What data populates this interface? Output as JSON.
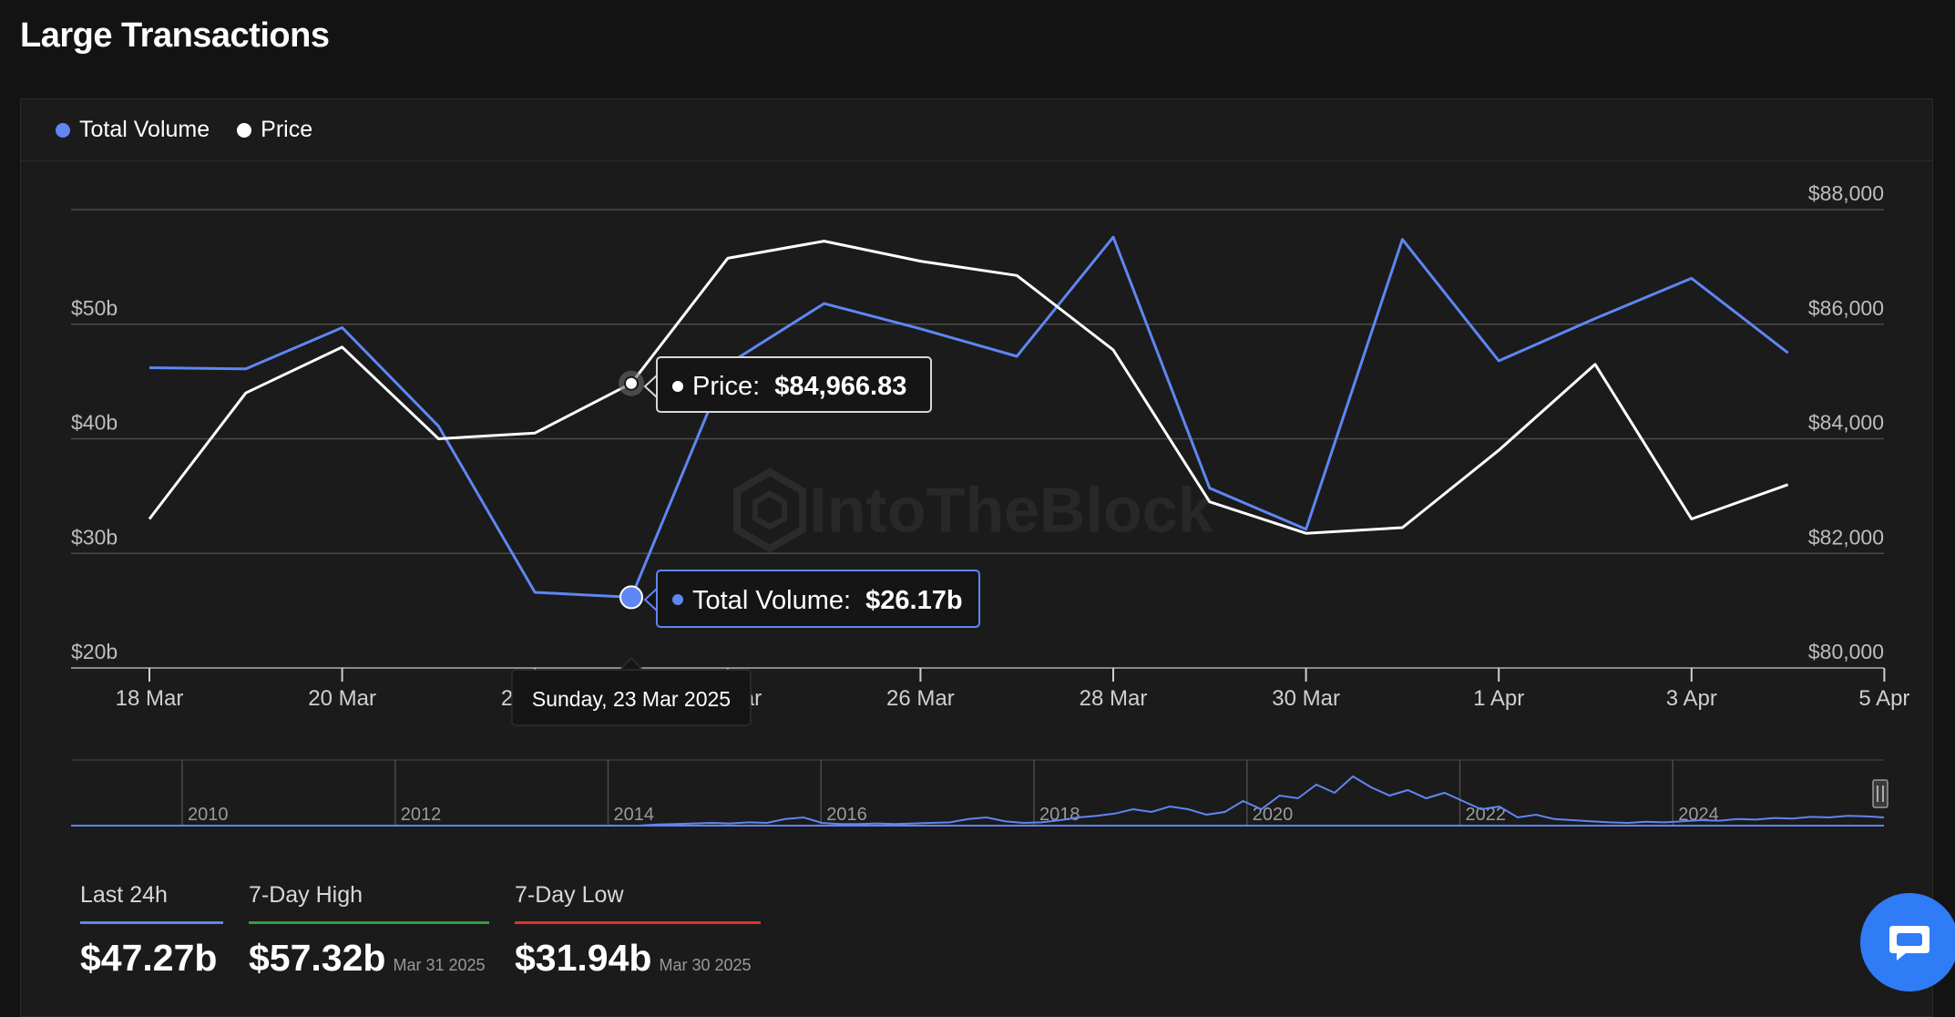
{
  "page": {
    "title": "Large Transactions"
  },
  "legend": [
    {
      "label": "Total Volume",
      "color": "#5f86f2"
    },
    {
      "label": "Price",
      "color": "#ffffff"
    }
  ],
  "watermark": "IntoTheBlock",
  "tooltip": {
    "date": "Sunday, 23 Mar 2025",
    "price_label": "Price:",
    "price_value": "$84,966.83",
    "volume_label": "Total Volume:",
    "volume_value": "$26.17b"
  },
  "chart_data": {
    "type": "line",
    "x": [
      "18 Mar",
      "19 Mar",
      "20 Mar",
      "21 Mar",
      "22 Mar",
      "23 Mar",
      "24 Mar",
      "25 Mar",
      "26 Mar",
      "27 Mar",
      "28 Mar",
      "29 Mar",
      "30 Mar",
      "31 Mar",
      "1 Apr",
      "2 Apr",
      "3 Apr",
      "4 Apr"
    ],
    "x_tick_labels": [
      "18 Mar",
      "20 Mar",
      "22 Mar",
      "24 Mar",
      "26 Mar",
      "28 Mar",
      "30 Mar",
      "1 Apr",
      "3 Apr",
      "5 Apr"
    ],
    "series": [
      {
        "name": "Total Volume",
        "axis": "left",
        "color": "#5f86f2",
        "values": [
          46.2,
          46.1,
          49.7,
          41.1,
          26.6,
          26.17,
          46.5,
          51.8,
          49.6,
          47.2,
          57.6,
          35.7,
          32.1,
          57.4,
          46.8,
          50.5,
          54.0,
          47.5
        ]
      },
      {
        "name": "Price",
        "axis": "right",
        "color": "#ffffff",
        "values": [
          82.6,
          84.8,
          85.6,
          84.0,
          84.1,
          84.96683,
          87.15,
          87.45,
          87.1,
          86.85,
          85.55,
          82.9,
          82.35,
          82.45,
          83.8,
          85.3,
          82.6,
          83.2
        ]
      }
    ],
    "y_left": {
      "ticks": [
        "$20b",
        "$30b",
        "$40b",
        "$50b"
      ],
      "range": [
        20,
        60
      ]
    },
    "y_right": {
      "ticks": [
        "$80,000",
        "$82,000",
        "$84,000",
        "$86,000",
        "$88,000"
      ],
      "range": [
        80,
        88
      ]
    },
    "highlight_index": 5,
    "navigator": {
      "years": [
        "2010",
        "2012",
        "2014",
        "2016",
        "2018",
        "2020",
        "2022",
        "2024"
      ],
      "series": [
        0,
        0,
        0,
        0,
        0,
        0,
        0,
        0,
        0,
        0,
        0,
        0,
        0,
        0,
        0,
        0,
        0,
        0,
        0,
        0,
        0,
        0,
        0,
        0,
        0,
        0,
        0,
        0,
        0,
        0,
        0,
        0,
        0.02,
        0.03,
        0.04,
        0.05,
        0.04,
        0.06,
        0.05,
        0.12,
        0.15,
        0.05,
        0.03,
        0.03,
        0.04,
        0.03,
        0.04,
        0.05,
        0.06,
        0.12,
        0.15,
        0.08,
        0.05,
        0.06,
        0.1,
        0.15,
        0.18,
        0.22,
        0.3,
        0.25,
        0.35,
        0.3,
        0.2,
        0.25,
        0.45,
        0.3,
        0.55,
        0.5,
        0.75,
        0.6,
        0.9,
        0.7,
        0.55,
        0.65,
        0.5,
        0.6,
        0.45,
        0.3,
        0.35,
        0.15,
        0.2,
        0.12,
        0.1,
        0.08,
        0.06,
        0.05,
        0.07,
        0.06,
        0.08,
        0.1,
        0.09,
        0.12,
        0.11,
        0.14,
        0.13,
        0.16,
        0.15,
        0.18,
        0.17,
        0.15
      ]
    }
  },
  "stats": [
    {
      "label": "Last 24h",
      "value": "$47.27b",
      "date": "",
      "color": "#5f86f2"
    },
    {
      "label": "7-Day High",
      "value": "$57.32b",
      "date": "Mar 31 2025",
      "color": "#2f9e44"
    },
    {
      "label": "7-Day Low",
      "value": "$31.94b",
      "date": "Mar 30 2025",
      "color": "#e0322b"
    }
  ]
}
